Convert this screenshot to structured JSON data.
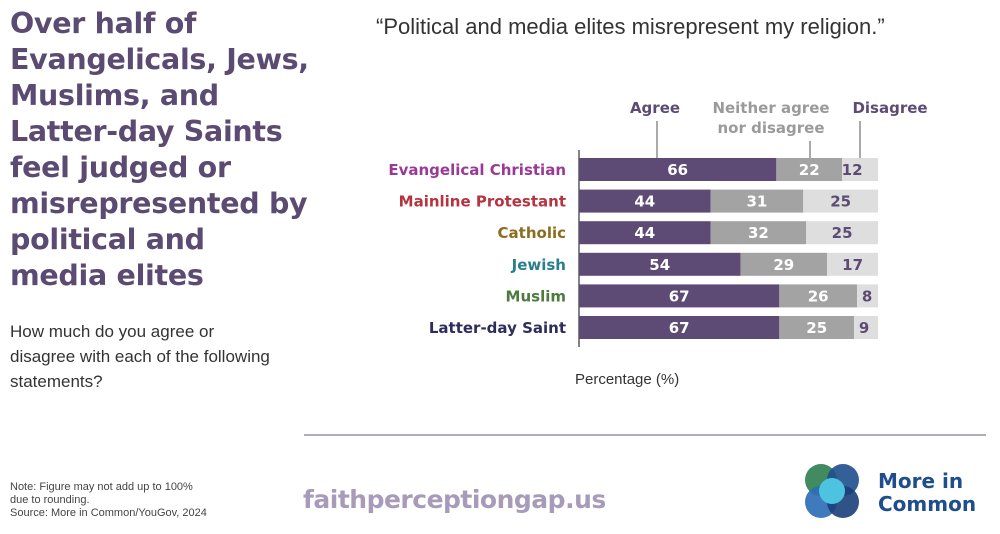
{
  "headline": "Over half of Evangelicals, Jews, Muslims, and Latter-day Saints feel judged or misrepresented by political and media elites",
  "question": "How much do you agree or disagree with each of the following statements?",
  "note": {
    "line1": "Note: Figure may not add up to 100%",
    "line2": "due to rounding.",
    "source": "Source: More in Common/YouGov, 2024"
  },
  "website": "faithperceptiongap.us",
  "logo": {
    "line1": "More in",
    "line2": "Common",
    "icon": "four-circle-logo-icon"
  },
  "colors": {
    "agree": "#5e4b75",
    "neither": "#a3a3a3",
    "disagree": "#dededf",
    "headline": "#5b4a72",
    "divider": "#b3acc0",
    "brand": "#1f4e8c"
  },
  "chart_data": {
    "type": "bar",
    "orientation": "horizontal",
    "stacked": true,
    "title": "“Political and media elites misrepresent my religion.”",
    "xlabel": "Percentage (%)",
    "categories": [
      "Evangelical Christian",
      "Mainline Protestant",
      "Catholic",
      "Jewish",
      "Muslim",
      "Latter-day Saint"
    ],
    "category_colors": [
      "#9b3a96",
      "#b5343f",
      "#8a6d1e",
      "#2a7f8e",
      "#4c7a3f",
      "#2d2c5a"
    ],
    "series": [
      {
        "name": "Agree",
        "values": [
          66,
          44,
          44,
          54,
          67,
          67
        ]
      },
      {
        "name": "Neither agree nor disagree",
        "values": [
          22,
          31,
          32,
          29,
          26,
          25
        ]
      },
      {
        "name": "Disagree",
        "values": [
          12,
          25,
          25,
          17,
          8,
          9
        ]
      }
    ],
    "legend_lines": [
      [
        "Agree"
      ],
      [
        "Neither agree",
        "nor disagree"
      ],
      [
        "Disagree"
      ]
    ],
    "xlim": [
      0,
      100
    ],
    "legend_position": "top"
  }
}
